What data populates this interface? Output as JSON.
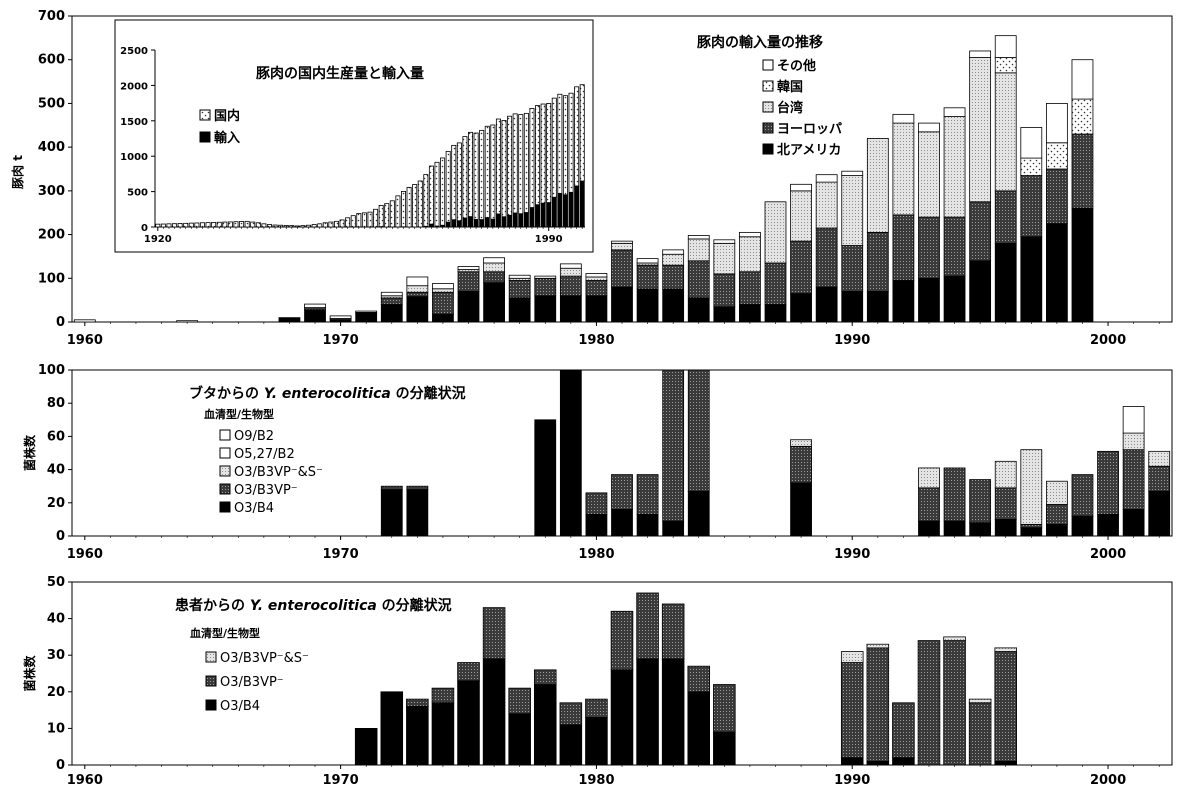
{
  "colors": {
    "north_america": "#000000",
    "europe": "#5a5a5a",
    "taiwan": "#d2d2d2",
    "korea": "#ffffff",
    "other": "#ffffff",
    "O3_B4": "#000000",
    "O3_B3VP": "#5a5a5a",
    "O3_B3VP_S": "#d2d2d2",
    "O5_27_B2": "#ffffff",
    "O9_B2": "#ffffff"
  },
  "chart_data": [
    {
      "id": "pork_imports",
      "type": "bar",
      "stacked": true,
      "title": "豚肉の輸入量の推移",
      "ylabel": "豚肉 t",
      "xlabel": "",
      "xlim": [
        1959.5,
        2002.5
      ],
      "ylim": [
        0,
        700
      ],
      "yticks": [
        0,
        100,
        200,
        300,
        400,
        500,
        600,
        700
      ],
      "xticks": [
        1960,
        1970,
        1980,
        1990,
        2000
      ],
      "legend_position": "top-right",
      "x": [
        1960,
        1961,
        1962,
        1963,
        1964,
        1965,
        1966,
        1967,
        1968,
        1969,
        1970,
        1971,
        1972,
        1973,
        1974,
        1975,
        1976,
        1977,
        1978,
        1979,
        1980,
        1981,
        1982,
        1983,
        1984,
        1985,
        1986,
        1987,
        1988,
        1989,
        1990,
        1991,
        1992,
        1993,
        1994,
        1995,
        1996,
        1997,
        1998,
        1999
      ],
      "series": [
        {
          "name": "北アメリカ",
          "color_key": "north_america",
          "values": [
            0,
            0,
            0,
            0,
            0,
            0,
            0,
            0,
            10,
            28,
            5,
            20,
            40,
            58,
            18,
            70,
            90,
            55,
            60,
            60,
            60,
            80,
            75,
            75,
            55,
            35,
            40,
            40,
            65,
            80,
            70,
            70,
            95,
            100,
            105,
            140,
            180,
            195,
            225,
            260
          ]
        },
        {
          "name": "ヨーロッパ",
          "color_key": "europe",
          "values": [
            0,
            0,
            0,
            0,
            0,
            0,
            0,
            0,
            0,
            5,
            3,
            2,
            15,
            10,
            50,
            45,
            25,
            40,
            40,
            45,
            35,
            85,
            55,
            55,
            85,
            75,
            75,
            95,
            120,
            135,
            105,
            135,
            150,
            140,
            135,
            135,
            120,
            140,
            125,
            170
          ]
        },
        {
          "name": "台湾",
          "color_key": "taiwan",
          "values": [
            0,
            0,
            0,
            0,
            0,
            0,
            0,
            0,
            0,
            0,
            0,
            0,
            5,
            15,
            8,
            5,
            20,
            5,
            0,
            18,
            8,
            15,
            5,
            25,
            50,
            70,
            80,
            140,
            115,
            105,
            160,
            215,
            210,
            195,
            230,
            330,
            270,
            0,
            0,
            0
          ]
        },
        {
          "name": "韓国",
          "color_key": "korea",
          "values": [
            0,
            0,
            0,
            0,
            0,
            0,
            0,
            0,
            0,
            0,
            0,
            0,
            0,
            0,
            0,
            0,
            0,
            0,
            0,
            0,
            0,
            0,
            0,
            0,
            0,
            0,
            0,
            0,
            0,
            0,
            0,
            0,
            0,
            0,
            0,
            0,
            35,
            40,
            60,
            80
          ]
        },
        {
          "name": "その他",
          "color_key": "other",
          "values": [
            5,
            0,
            0,
            0,
            3,
            0,
            0,
            0,
            0,
            8,
            6,
            3,
            8,
            20,
            12,
            7,
            12,
            7,
            5,
            10,
            8,
            5,
            10,
            10,
            8,
            8,
            10,
            0,
            15,
            17,
            10,
            0,
            20,
            20,
            20,
            15,
            50,
            70,
            90,
            90
          ]
        }
      ]
    },
    {
      "id": "inset_pork_production",
      "type": "bar",
      "stacked": true,
      "title": "豚肉の国内生産量と輸入量",
      "xlabel": "",
      "ylabel": "",
      "xlim": [
        1919.5,
        1996.5
      ],
      "ylim": [
        0,
        2500
      ],
      "yticks": [
        0,
        500,
        1000,
        1500,
        2000,
        2500
      ],
      "xticks": [
        1920,
        1990
      ],
      "legend_position": "top-left",
      "x": [
        1920,
        1921,
        1922,
        1923,
        1924,
        1925,
        1926,
        1927,
        1928,
        1929,
        1930,
        1931,
        1932,
        1933,
        1934,
        1935,
        1936,
        1937,
        1938,
        1939,
        1940,
        1941,
        1942,
        1943,
        1944,
        1945,
        1946,
        1947,
        1948,
        1949,
        1950,
        1951,
        1952,
        1953,
        1954,
        1955,
        1956,
        1957,
        1958,
        1959,
        1960,
        1961,
        1962,
        1963,
        1964,
        1965,
        1966,
        1967,
        1968,
        1969,
        1970,
        1971,
        1972,
        1973,
        1974,
        1975,
        1976,
        1977,
        1978,
        1979,
        1980,
        1981,
        1982,
        1983,
        1984,
        1985,
        1986,
        1987,
        1988,
        1989,
        1990,
        1991,
        1992,
        1993,
        1994,
        1995,
        1996
      ],
      "series": [
        {
          "name": "輸入",
          "color_key": "north_america",
          "values": [
            0,
            0,
            0,
            0,
            0,
            0,
            0,
            0,
            0,
            0,
            0,
            0,
            0,
            0,
            0,
            0,
            0,
            0,
            0,
            0,
            0,
            0,
            0,
            0,
            0,
            0,
            0,
            0,
            0,
            0,
            0,
            0,
            0,
            0,
            0,
            0,
            0,
            0,
            0,
            0,
            5,
            0,
            0,
            0,
            3,
            0,
            0,
            0,
            10,
            41,
            14,
            25,
            68,
            103,
            88,
            127,
            147,
            107,
            105,
            133,
            111,
            185,
            145,
            165,
            198,
            188,
            205,
            275,
            315,
            337,
            345,
            420,
            475,
            455,
            490,
            580,
            650
          ]
        },
        {
          "name": "国内",
          "color_key": "korea",
          "values": [
            40,
            42,
            45,
            47,
            50,
            52,
            55,
            57,
            60,
            62,
            65,
            67,
            70,
            72,
            75,
            78,
            80,
            70,
            60,
            45,
            35,
            28,
            25,
            22,
            20,
            15,
            20,
            25,
            35,
            45,
            60,
            70,
            80,
            100,
            130,
            160,
            190,
            200,
            210,
            250,
            300,
            330,
            370,
            440,
            500,
            560,
            600,
            650,
            730,
            820,
            900,
            950,
            1000,
            1050,
            1100,
            1150,
            1190,
            1220,
            1260,
            1290,
            1330,
            1340,
            1360,
            1400,
            1400,
            1400,
            1400,
            1400,
            1400,
            1400,
            1400,
            1400,
            1400,
            1400,
            1400,
            1400,
            1360
          ]
        }
      ]
    },
    {
      "id": "pig_isolation",
      "type": "bar",
      "stacked": true,
      "title_parts": [
        "ブタからの ",
        "Y. enterocolitica",
        " の分離状況"
      ],
      "legend_title": "血清型/生物型",
      "ylabel": "菌株数",
      "xlabel": "",
      "xlim": [
        1959.5,
        2002.5
      ],
      "ylim": [
        0,
        100
      ],
      "yticks": [
        0,
        20,
        40,
        60,
        80,
        100
      ],
      "xticks": [
        1960,
        1970,
        1980,
        1990,
        2000
      ],
      "legend_position": "top-left",
      "x": [
        1972,
        1973,
        1978,
        1979,
        1980,
        1981,
        1982,
        1983,
        1984,
        1988,
        1993,
        1994,
        1995,
        1996,
        1997,
        1998,
        1999,
        2000,
        2001,
        2002
      ],
      "series": [
        {
          "name": "O3/B4",
          "color_key": "O3_B4",
          "values": [
            28,
            28,
            70,
            100,
            13,
            16,
            13,
            9,
            27,
            32,
            9,
            9,
            8,
            10,
            5,
            7,
            12,
            13,
            16,
            27
          ]
        },
        {
          "name": "O3/B3VP⁻",
          "color_key": "O3_B3VP",
          "values": [
            2,
            2,
            0,
            0,
            13,
            21,
            24,
            91,
            73,
            22,
            20,
            32,
            26,
            19,
            2,
            12,
            25,
            38,
            36,
            15
          ]
        },
        {
          "name": "O3/B3VP⁻&S⁻",
          "color_key": "O3_B3VP_S",
          "values": [
            0,
            0,
            0,
            0,
            0,
            0,
            0,
            0,
            0,
            4,
            12,
            0,
            0,
            16,
            45,
            14,
            0,
            0,
            10,
            9
          ]
        },
        {
          "name": "O5,27/B2",
          "color_key": "O5_27_B2",
          "values": [
            0,
            0,
            0,
            0,
            0,
            0,
            0,
            0,
            0,
            0,
            0,
            0,
            0,
            0,
            0,
            0,
            0,
            0,
            0,
            0
          ]
        },
        {
          "name": "O9/B2",
          "color_key": "O9_B2",
          "values": [
            0,
            0,
            0,
            0,
            0,
            0,
            0,
            0,
            0,
            0,
            0,
            0,
            0,
            0,
            0,
            0,
            0,
            0,
            16,
            0
          ]
        }
      ]
    },
    {
      "id": "patient_isolation",
      "type": "bar",
      "stacked": true,
      "title_parts": [
        "患者からの ",
        "Y. enterocolitica",
        " の分離状況"
      ],
      "legend_title": "血清型/生物型",
      "ylabel": "菌株数",
      "xlabel": "",
      "xlim": [
        1959.5,
        2002.5
      ],
      "ylim": [
        0,
        50
      ],
      "yticks": [
        0,
        10,
        20,
        30,
        40,
        50
      ],
      "xticks": [
        1960,
        1970,
        1980,
        1990,
        2000
      ],
      "legend_position": "top-left",
      "x": [
        1971,
        1972,
        1973,
        1974,
        1975,
        1976,
        1977,
        1978,
        1979,
        1980,
        1981,
        1982,
        1983,
        1984,
        1985,
        1990,
        1991,
        1992,
        1993,
        1994,
        1995,
        1996
      ],
      "series": [
        {
          "name": "O3/B4",
          "color_key": "O3_B4",
          "values": [
            10,
            20,
            16,
            17,
            23,
            29,
            14,
            22,
            11,
            13,
            26,
            29,
            29,
            20,
            9,
            2,
            1,
            2,
            0,
            0,
            0,
            1
          ]
        },
        {
          "name": "O3/B3VP⁻",
          "color_key": "O3_B3VP",
          "values": [
            0,
            0,
            2,
            4,
            5,
            14,
            7,
            4,
            6,
            5,
            16,
            18,
            15,
            7,
            13,
            26,
            31,
            15,
            34,
            34,
            17,
            30
          ]
        },
        {
          "name": "O3/B3VP⁻&S⁻",
          "color_key": "O3_B3VP_S",
          "values": [
            0,
            0,
            0,
            0,
            0,
            0,
            0,
            0,
            0,
            0,
            0,
            0,
            0,
            0,
            0,
            3,
            1,
            0,
            0,
            1,
            1,
            1
          ]
        }
      ]
    }
  ]
}
